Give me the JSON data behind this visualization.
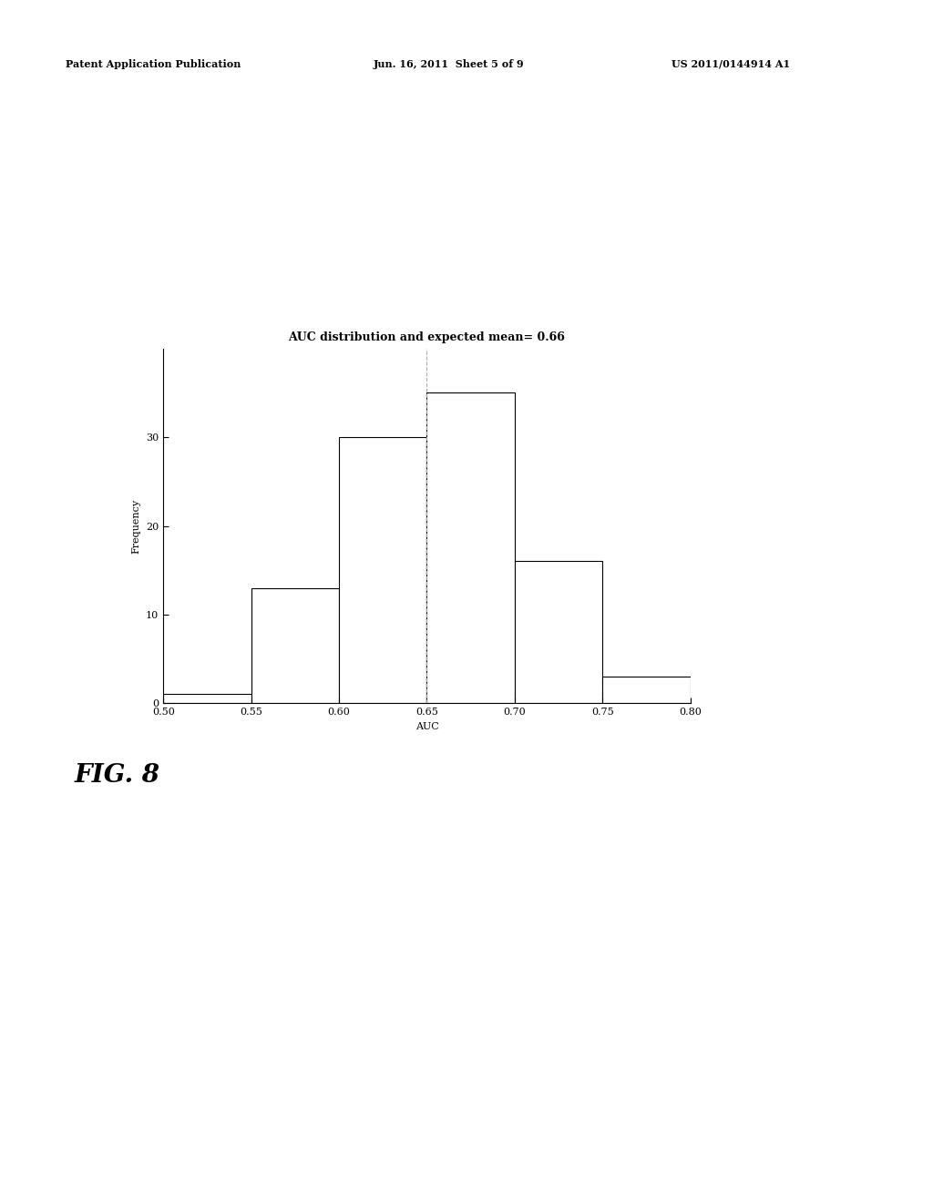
{
  "title": "AUC distribution and expected mean= 0.66",
  "xlabel": "AUC",
  "ylabel": "Frequency",
  "bin_edges": [
    0.5,
    0.55,
    0.6,
    0.65,
    0.7,
    0.75,
    0.8
  ],
  "frequencies": [
    1,
    13,
    30,
    35,
    16,
    3
  ],
  "mean_line_x": 0.65,
  "mean_line_color": "#aaaaaa",
  "bar_facecolor": "white",
  "bar_edgecolor": "black",
  "xlim": [
    0.5,
    0.8
  ],
  "ylim": [
    0,
    40
  ],
  "yticks": [
    0,
    10,
    20,
    30
  ],
  "xticks": [
    0.5,
    0.55,
    0.6,
    0.65,
    0.7,
    0.75,
    0.8
  ],
  "fig_label": "FIG. 8",
  "header_left": "Patent Application Publication",
  "header_mid": "Jun. 16, 2011  Sheet 5 of 9",
  "header_right": "US 2011/0144914 A1",
  "background_color": "white",
  "title_fontsize": 9,
  "axis_label_fontsize": 8,
  "tick_fontsize": 8,
  "fig_label_fontsize": 20,
  "header_fontsize": 8
}
